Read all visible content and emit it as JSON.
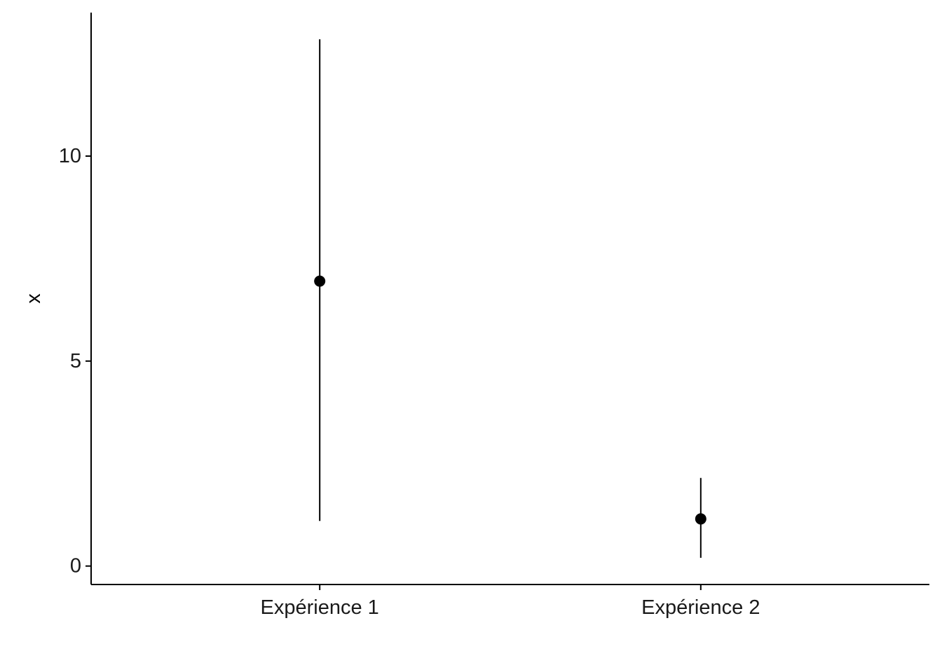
{
  "chart_data": {
    "type": "scatter",
    "title": "",
    "xlabel": "",
    "ylabel": "x",
    "categories": [
      "Expérience 1",
      "Expérience 2"
    ],
    "series": [
      {
        "values": [
          6.95,
          1.15
        ],
        "lower": [
          1.1,
          0.2
        ],
        "upper": [
          12.85,
          2.15
        ]
      }
    ],
    "ylim": [
      -0.45,
      13.5
    ],
    "yticks": [
      0,
      5,
      10
    ],
    "ytick_labels": [
      "0",
      "5",
      "10"
    ],
    "grid": false,
    "legend": "none",
    "colors": {
      "point": "#000000",
      "errorbar": "#000000",
      "axis": "#000000"
    }
  }
}
